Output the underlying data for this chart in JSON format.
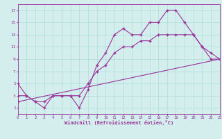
{
  "line1_x": [
    0,
    1,
    2,
    3,
    4,
    5,
    6,
    7,
    8,
    9,
    10,
    11,
    12,
    13,
    14,
    15,
    16,
    17,
    18,
    19,
    20,
    21,
    22,
    23
  ],
  "line1_y": [
    5,
    3,
    2,
    1,
    3,
    3,
    3,
    1,
    4,
    8,
    10,
    13,
    14,
    13,
    13,
    15,
    15,
    17,
    17,
    15,
    13,
    11,
    9,
    9
  ],
  "line2_x": [
    0,
    1,
    2,
    3,
    4,
    5,
    6,
    7,
    8,
    9,
    10,
    11,
    12,
    13,
    14,
    15,
    16,
    17,
    18,
    19,
    20,
    21,
    22,
    23
  ],
  "line2_y": [
    3,
    3,
    2,
    2,
    3,
    3,
    3,
    3,
    5,
    7,
    8,
    10,
    11,
    11,
    12,
    12,
    13,
    13,
    13,
    13,
    13,
    11,
    10,
    9
  ],
  "line3_x": [
    0,
    23
  ],
  "line3_y": [
    2,
    9
  ],
  "line_color": "#993399",
  "bg_color": "#d4eeee",
  "grid_color": "#aadddd",
  "xlabel": "Windchill (Refroidissement éolien,°C)",
  "xlim": [
    0,
    23
  ],
  "ylim": [
    0,
    18
  ],
  "xticks": [
    0,
    1,
    2,
    3,
    4,
    5,
    6,
    7,
    8,
    9,
    10,
    11,
    12,
    13,
    14,
    15,
    16,
    17,
    18,
    19,
    20,
    21,
    22,
    23
  ],
  "yticks": [
    1,
    3,
    5,
    7,
    9,
    11,
    13,
    15,
    17
  ],
  "marker": "+",
  "marker_size": 3,
  "line_width": 0.8
}
